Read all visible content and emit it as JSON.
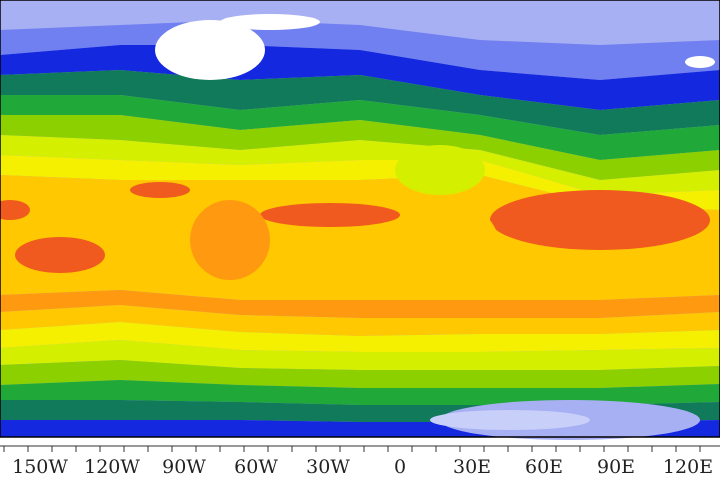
{
  "map": {
    "x_axis": {
      "ticks": [
        {
          "lon": -150,
          "label": "150W"
        },
        {
          "lon": -120,
          "label": "120W"
        },
        {
          "lon": -90,
          "label": "90W"
        },
        {
          "lon": -60,
          "label": "60W"
        },
        {
          "lon": -30,
          "label": "30W"
        },
        {
          "lon": 0,
          "label": "0"
        },
        {
          "lon": 30,
          "label": "30E"
        },
        {
          "lon": 60,
          "label": "60E"
        },
        {
          "lon": 90,
          "label": "90E"
        },
        {
          "lon": 120,
          "label": "120E"
        }
      ]
    },
    "colors": [
      "#a8b0f4",
      "#7080f0",
      "#1428e0",
      "#107a5a",
      "#20a838",
      "#8cd000",
      "#d4f000",
      "#f4f000",
      "#ffc800",
      "#ff9a10",
      "#f05a1e",
      "#ffffff"
    ]
  }
}
